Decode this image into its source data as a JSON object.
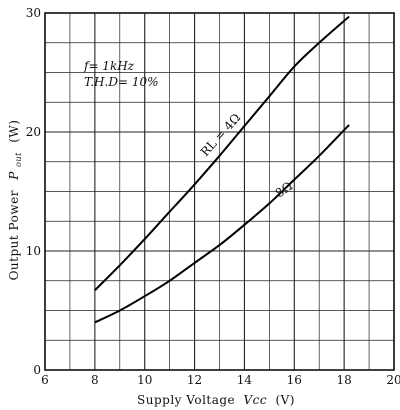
{
  "chart_data": {
    "type": "line",
    "xlabel": "Supply Voltage",
    "xlabel_symbol": "Vcc",
    "xlabel_unit": "(V)",
    "ylabel": "Output Power",
    "ylabel_symbol": "P",
    "ylabel_symbol_sub": "out",
    "ylabel_unit": "(W)",
    "xlim": [
      6,
      20
    ],
    "ylim": [
      0,
      30
    ],
    "x_ticks": [
      6,
      8,
      10,
      12,
      14,
      16,
      18,
      20
    ],
    "y_ticks": [
      0,
      10,
      20,
      30
    ],
    "x_tick_labels": [
      "6",
      "8",
      "10",
      "12",
      "14",
      "16",
      "18",
      "20"
    ],
    "y_tick_labels": [
      "0",
      "10",
      "20",
      "30"
    ],
    "x_minor_step": 1,
    "y_minor_step": 2.5,
    "grid": true,
    "conditions": [
      "f= 1kHz",
      "T.H.D= 10%"
    ],
    "series": [
      {
        "name": "RL = 4Ω",
        "x": [
          8,
          9,
          10,
          11,
          12,
          13,
          14,
          15,
          16,
          17,
          18.2
        ],
        "y": [
          6.7,
          8.8,
          11.0,
          13.3,
          15.6,
          18.0,
          20.5,
          23.0,
          25.5,
          27.5,
          29.7
        ]
      },
      {
        "name": "8Ω",
        "x": [
          8,
          9,
          10,
          11,
          12,
          13,
          14,
          15,
          16,
          17,
          18.2
        ],
        "y": [
          4.0,
          5.0,
          6.2,
          7.5,
          9.0,
          10.5,
          12.2,
          14.0,
          16.0,
          18.0,
          20.6
        ]
      }
    ]
  }
}
